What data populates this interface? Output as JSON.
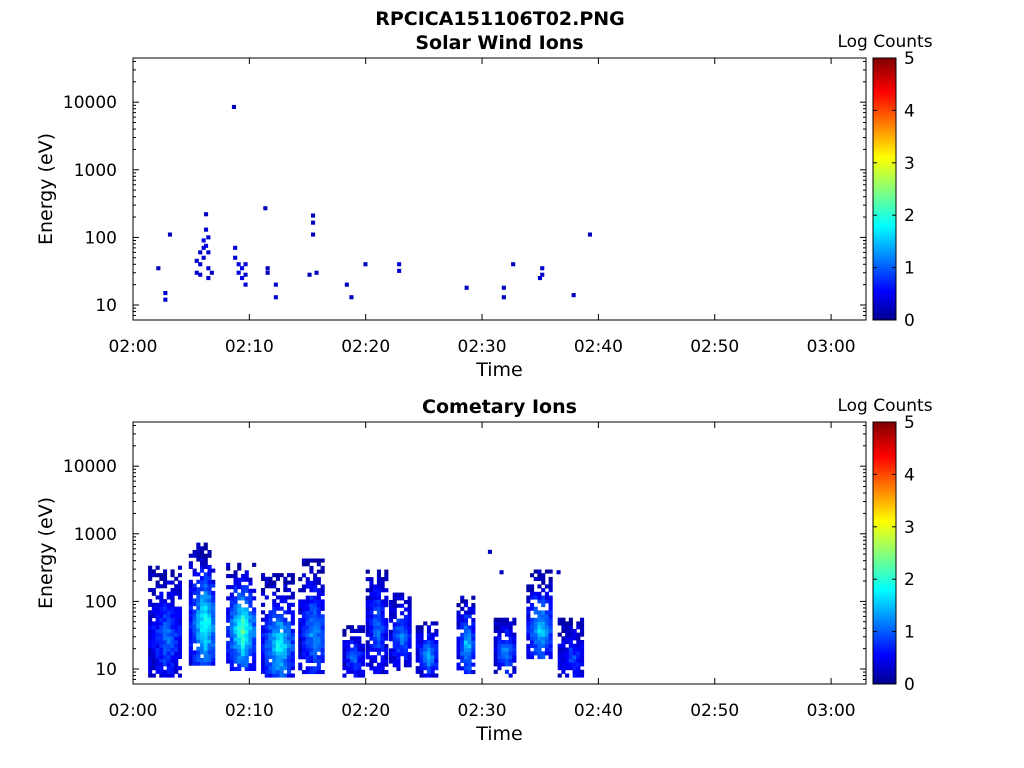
{
  "figure": {
    "title": "RPCICA151106T02.PNG"
  },
  "chart_data": [
    {
      "type": "heatmap",
      "title": "Solar Wind Ions",
      "xlabel": "Time",
      "ylabel": "Energy (eV)",
      "yscale": "log",
      "ylim": [
        6,
        45000
      ],
      "xlim": [
        "02:00",
        "03:03"
      ],
      "x_ticks": [
        "02:00",
        "02:10",
        "02:20",
        "02:30",
        "02:40",
        "02:50",
        "03:00"
      ],
      "y_ticks": [
        "10",
        "100",
        "1000",
        "10000"
      ],
      "colorbar": {
        "label": "Log Counts",
        "range": [
          0,
          5
        ],
        "ticks": [
          "0",
          "1",
          "2",
          "3",
          "4",
          "5"
        ],
        "colormap": "jet"
      },
      "cells": [
        {
          "t": 2.0,
          "e": 35,
          "c": 0.3
        },
        {
          "t": 2.6,
          "e": 12,
          "c": 0.4
        },
        {
          "t": 2.6,
          "e": 15,
          "c": 0.4
        },
        {
          "t": 3.0,
          "e": 110,
          "c": 0.3
        },
        {
          "t": 5.3,
          "e": 45,
          "c": 0.4
        },
        {
          "t": 5.3,
          "e": 30,
          "c": 0.4
        },
        {
          "t": 5.6,
          "e": 60,
          "c": 0.4
        },
        {
          "t": 5.6,
          "e": 40,
          "c": 0.4
        },
        {
          "t": 5.6,
          "e": 28,
          "c": 0.4
        },
        {
          "t": 5.9,
          "e": 90,
          "c": 0.5
        },
        {
          "t": 5.9,
          "e": 70,
          "c": 0.4
        },
        {
          "t": 5.9,
          "e": 50,
          "c": 0.4
        },
        {
          "t": 6.1,
          "e": 220,
          "c": 0.3
        },
        {
          "t": 6.1,
          "e": 130,
          "c": 0.4
        },
        {
          "t": 6.1,
          "e": 75,
          "c": 0.5
        },
        {
          "t": 6.3,
          "e": 100,
          "c": 0.4
        },
        {
          "t": 6.3,
          "e": 60,
          "c": 0.4
        },
        {
          "t": 6.3,
          "e": 35,
          "c": 0.4
        },
        {
          "t": 6.3,
          "e": 25,
          "c": 0.4
        },
        {
          "t": 6.6,
          "e": 30,
          "c": 0.3
        },
        {
          "t": 8.5,
          "e": 8500,
          "c": 0.3
        },
        {
          "t": 8.6,
          "e": 70,
          "c": 0.4
        },
        {
          "t": 8.6,
          "e": 50,
          "c": 0.4
        },
        {
          "t": 8.9,
          "e": 40,
          "c": 0.5
        },
        {
          "t": 8.9,
          "e": 30,
          "c": 0.5
        },
        {
          "t": 9.2,
          "e": 35,
          "c": 0.5
        },
        {
          "t": 9.2,
          "e": 25,
          "c": 0.5
        },
        {
          "t": 9.5,
          "e": 40,
          "c": 0.4
        },
        {
          "t": 9.5,
          "e": 28,
          "c": 0.4
        },
        {
          "t": 9.5,
          "e": 20,
          "c": 0.4
        },
        {
          "t": 11.2,
          "e": 270,
          "c": 0.3
        },
        {
          "t": 11.4,
          "e": 35,
          "c": 0.3
        },
        {
          "t": 11.4,
          "e": 30,
          "c": 0.3
        },
        {
          "t": 12.1,
          "e": 20,
          "c": 0.4
        },
        {
          "t": 12.1,
          "e": 13,
          "c": 0.4
        },
        {
          "t": 15.0,
          "e": 28,
          "c": 0.3
        },
        {
          "t": 15.3,
          "e": 210,
          "c": 0.3
        },
        {
          "t": 15.3,
          "e": 165,
          "c": 0.3
        },
        {
          "t": 15.3,
          "e": 110,
          "c": 0.3
        },
        {
          "t": 15.6,
          "e": 30,
          "c": 0.3
        },
        {
          "t": 18.2,
          "e": 20,
          "c": 0.3
        },
        {
          "t": 18.6,
          "e": 13,
          "c": 0.3
        },
        {
          "t": 19.8,
          "e": 40,
          "c": 0.3
        },
        {
          "t": 22.7,
          "e": 40,
          "c": 0.4
        },
        {
          "t": 22.7,
          "e": 32,
          "c": 0.4
        },
        {
          "t": 28.5,
          "e": 18,
          "c": 0.3
        },
        {
          "t": 31.7,
          "e": 13,
          "c": 0.3
        },
        {
          "t": 31.7,
          "e": 18,
          "c": 0.3
        },
        {
          "t": 32.5,
          "e": 40,
          "c": 0.3
        },
        {
          "t": 34.8,
          "e": 25,
          "c": 0.4
        },
        {
          "t": 35.0,
          "e": 35,
          "c": 0.4
        },
        {
          "t": 35.0,
          "e": 28,
          "c": 0.4
        },
        {
          "t": 37.7,
          "e": 14,
          "c": 0.3
        },
        {
          "t": 39.1,
          "e": 110,
          "c": 0.3
        }
      ]
    },
    {
      "type": "heatmap",
      "title": "Cometary Ions",
      "xlabel": "Time",
      "ylabel": "Energy (eV)",
      "yscale": "log",
      "ylim": [
        6,
        45000
      ],
      "xlim": [
        "02:00",
        "03:03"
      ],
      "x_ticks": [
        "02:00",
        "02:10",
        "02:20",
        "02:30",
        "02:40",
        "02:50",
        "03:00"
      ],
      "y_ticks": [
        "10",
        "100",
        "1000",
        "10000"
      ],
      "colorbar": {
        "label": "Log Counts",
        "range": [
          0,
          5
        ],
        "ticks": [
          "0",
          "1",
          "2",
          "3",
          "4",
          "5"
        ],
        "colormap": "jet"
      },
      "bursts": [
        {
          "t0": 1.3,
          "t1": 4.0,
          "lo": 8,
          "hi": 350,
          "peak": 1.0,
          "pe": 30
        },
        {
          "t0": 4.8,
          "t1": 7.0,
          "lo": 12,
          "hi": 700,
          "peak": 2.0,
          "pe": 45
        },
        {
          "t0": 8.0,
          "t1": 10.3,
          "lo": 10,
          "hi": 350,
          "peak": 2.2,
          "pe": 38
        },
        {
          "t0": 11.0,
          "t1": 13.6,
          "lo": 8,
          "hi": 260,
          "peak": 1.8,
          "pe": 22
        },
        {
          "t0": 14.2,
          "t1": 16.4,
          "lo": 9,
          "hi": 420,
          "peak": 1.3,
          "pe": 35
        },
        {
          "t0": 18.0,
          "t1": 19.6,
          "lo": 8,
          "hi": 45,
          "peak": 1.0,
          "pe": 15
        },
        {
          "t0": 20.0,
          "t1": 21.6,
          "lo": 9,
          "hi": 300,
          "peak": 1.0,
          "pe": 40
        },
        {
          "t0": 22.0,
          "t1": 23.6,
          "lo": 10,
          "hi": 130,
          "peak": 1.1,
          "pe": 30
        },
        {
          "t0": 24.3,
          "t1": 26.0,
          "lo": 8,
          "hi": 50,
          "peak": 1.3,
          "pe": 16
        },
        {
          "t0": 27.8,
          "t1": 29.2,
          "lo": 9,
          "hi": 120,
          "peak": 1.6,
          "pe": 22
        },
        {
          "t0": 31.0,
          "t1": 32.6,
          "lo": 8,
          "hi": 60,
          "peak": 1.2,
          "pe": 18
        },
        {
          "t0": 33.8,
          "t1": 35.8,
          "lo": 15,
          "hi": 300,
          "peak": 1.6,
          "pe": 38
        },
        {
          "t0": 36.5,
          "t1": 38.6,
          "lo": 8,
          "hi": 60,
          "peak": 0.8,
          "pe": 15
        }
      ],
      "sparse": [
        {
          "t": 30.5,
          "e": 540,
          "c": 0.3
        },
        {
          "t": 31.5,
          "e": 270,
          "c": 0.3
        },
        {
          "t": 36.4,
          "e": 270,
          "c": 0.3
        }
      ]
    }
  ]
}
